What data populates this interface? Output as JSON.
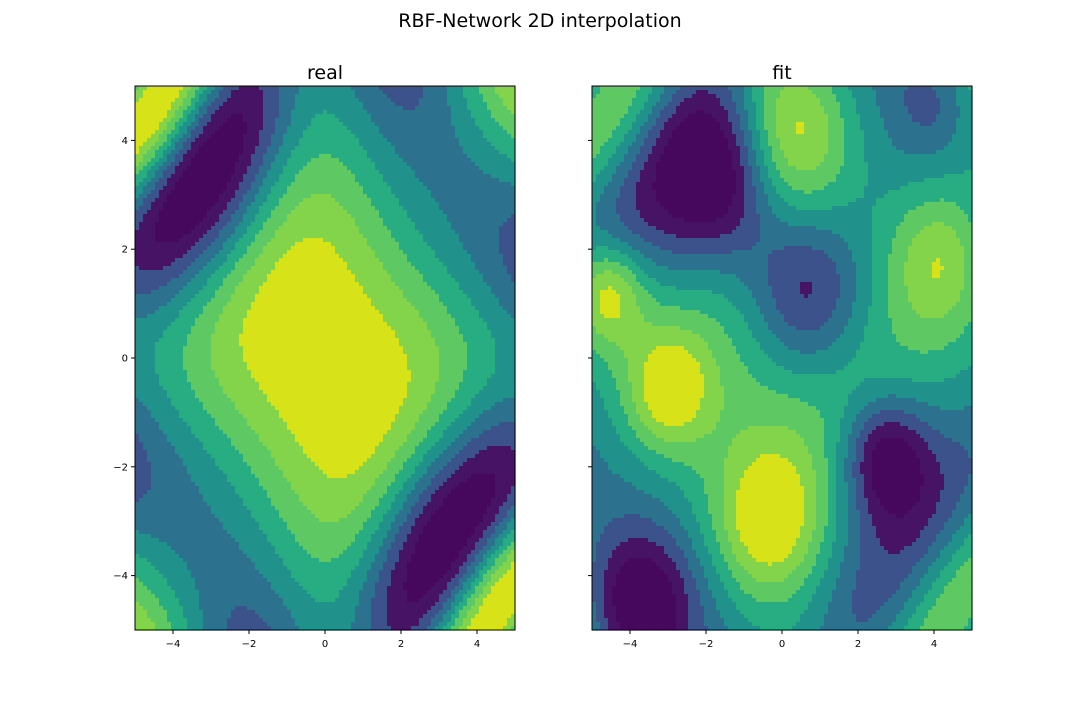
{
  "figure": {
    "title": "RBF-Network 2D interpolation"
  },
  "chart_data": [
    {
      "type": "contour",
      "title": "real",
      "xlabel": "",
      "ylabel": "",
      "xlim": [
        -5,
        5
      ],
      "ylim": [
        -5,
        5
      ],
      "xticks": [
        -4,
        -2,
        0,
        2,
        4
      ],
      "yticks": [
        -4,
        -2,
        0,
        2,
        4
      ],
      "colormap": "viridis",
      "levels": 8,
      "grid": false,
      "zscale": [
        -1.7,
        1.7
      ],
      "data_generator": "real"
    },
    {
      "type": "contour",
      "title": "fit",
      "xlabel": "",
      "ylabel": "",
      "xlim": [
        -5,
        5
      ],
      "ylim": [
        -5,
        5
      ],
      "xticks": [
        -4,
        -2,
        0,
        2,
        4
      ],
      "yticks": [
        -4,
        -2,
        0,
        2,
        4
      ],
      "yticklabels_visible": false,
      "colormap": "viridis",
      "levels": 8,
      "grid": false,
      "zscale": [
        -1.7,
        1.7
      ],
      "data_generator": "fit"
    }
  ],
  "palette": [
    "#46085c",
    "#471365",
    "#3b528b",
    "#2c728e",
    "#21918c",
    "#27ad81",
    "#5ec962",
    "#84d44b",
    "#d8e219"
  ]
}
